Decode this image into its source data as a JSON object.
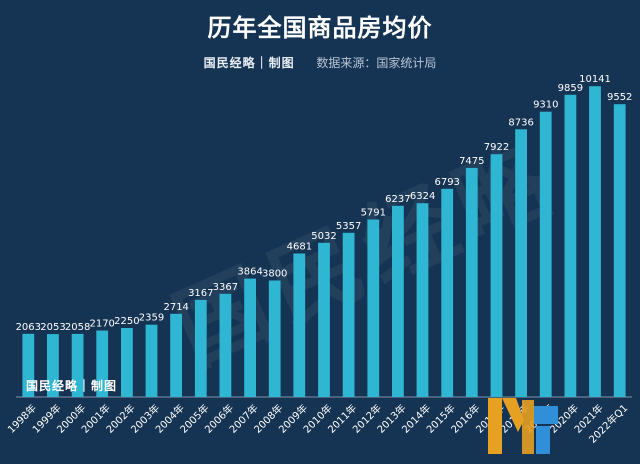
{
  "chart_data": {
    "type": "bar",
    "title": "历年全国商品房均价",
    "categories": [
      "1998年",
      "1999年",
      "2000年",
      "2001年",
      "2002年",
      "2003年",
      "2004年",
      "2005年",
      "2006年",
      "2007年",
      "2008年",
      "2009年",
      "2010年",
      "2011年",
      "2012年",
      "2013年",
      "2014年",
      "2015年",
      "2016年",
      "2017年",
      "2018年",
      "2019年",
      "2020年",
      "2021年",
      "2022年Q1"
    ],
    "values": [
      2063,
      2053,
      2058,
      2170,
      2250,
      2359,
      2714,
      3167,
      3367,
      3864,
      3800,
      4681,
      5032,
      5357,
      5791,
      6237,
      6324,
      6793,
      7475,
      7922,
      8736,
      9310,
      9859,
      10141,
      9552
    ],
    "ylim": [
      0,
      10800
    ],
    "grid": false,
    "bar_color": "#2eb6d3",
    "background_color": "#153352"
  },
  "credit": {
    "brand": "国民经略｜制图",
    "source": "数据来源：国家统计局"
  },
  "stamp": "国民经略｜制图",
  "watermark": "国民经略"
}
